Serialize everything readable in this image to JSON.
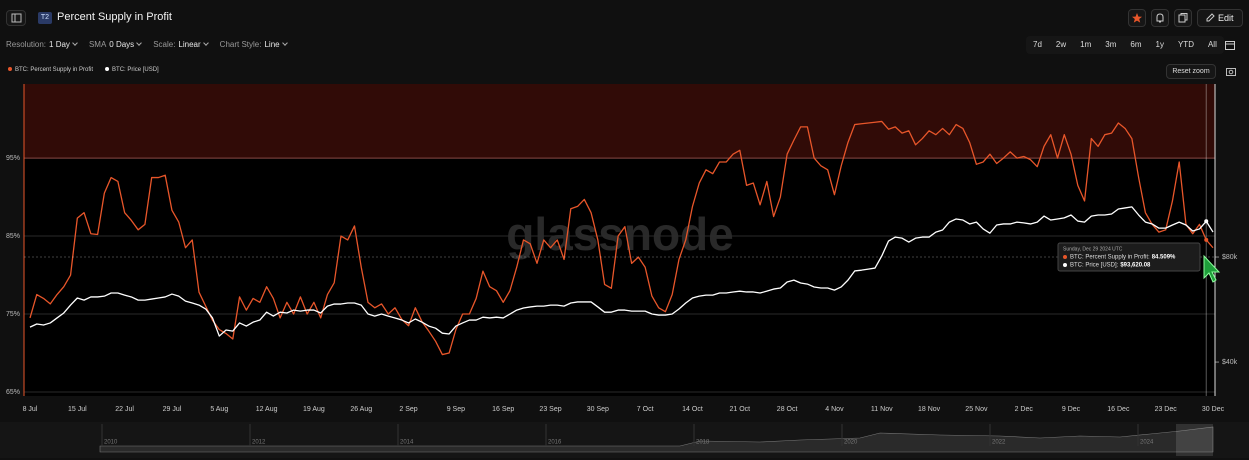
{
  "header": {
    "badge": "T2",
    "title": "Percent Supply in Profit",
    "edit": "Edit"
  },
  "toolbar": {
    "items": [
      {
        "label": "Resolution:",
        "value": "1 Day"
      },
      {
        "label": "SMA",
        "value": "0 Days"
      },
      {
        "label": "Scale:",
        "value": "Linear"
      },
      {
        "label": "Chart Style:",
        "value": "Line"
      }
    ],
    "ranges": [
      "7d",
      "2w",
      "1m",
      "3m",
      "6m",
      "1y",
      "YTD",
      "All"
    ],
    "reset": "Reset zoom"
  },
  "watermark": "glassnode",
  "tooltip": {
    "date": "Sunday, Dec 29 2024 UTC",
    "rows": [
      {
        "label": "BTC: Percent Supply in Profit:",
        "value": "84.509%"
      },
      {
        "label": "BTC: Price [USD]:",
        "value": "$93,620.08"
      }
    ]
  },
  "navigator": {
    "years": [
      "2010",
      "2012",
      "2014",
      "2016",
      "2018",
      "2020",
      "2022",
      "2024"
    ]
  },
  "chart_data": {
    "type": "line",
    "categories": [
      "8 Jul",
      null,
      null,
      null,
      null,
      null,
      null,
      "15 Jul",
      null,
      null,
      null,
      null,
      null,
      null,
      "22 Jul",
      null,
      null,
      null,
      null,
      null,
      null,
      "29 Jul",
      null,
      null,
      null,
      null,
      null,
      null,
      "5 Aug",
      null,
      null,
      null,
      null,
      null,
      null,
      "12 Aug",
      null,
      null,
      null,
      null,
      null,
      null,
      "19 Aug",
      null,
      null,
      null,
      null,
      null,
      null,
      "26 Aug",
      null,
      null,
      null,
      null,
      null,
      null,
      "2 Sep",
      null,
      null,
      null,
      null,
      null,
      null,
      "9 Sep",
      null,
      null,
      null,
      null,
      null,
      null,
      "16 Sep",
      null,
      null,
      null,
      null,
      null,
      null,
      "23 Sep",
      null,
      null,
      null,
      null,
      null,
      null,
      "30 Sep",
      null,
      null,
      null,
      null,
      null,
      null,
      "7 Oct",
      null,
      null,
      null,
      null,
      null,
      null,
      "14 Oct",
      null,
      null,
      null,
      null,
      null,
      null,
      "21 Oct",
      null,
      null,
      null,
      null,
      null,
      null,
      "28 Oct",
      null,
      null,
      null,
      null,
      null,
      null,
      "4 Nov",
      null,
      null,
      null,
      null,
      null,
      null,
      "11 Nov",
      null,
      null,
      null,
      null,
      null,
      null,
      "18 Nov",
      null,
      null,
      null,
      null,
      null,
      null,
      "25 Nov",
      null,
      null,
      null,
      null,
      null,
      null,
      "2 Dec",
      null,
      null,
      null,
      null,
      null,
      null,
      "9 Dec",
      null,
      null,
      null,
      null,
      null,
      null,
      "16 Dec",
      null,
      null,
      null,
      null,
      null,
      null,
      "23 Dec",
      null,
      null,
      null,
      null,
      null,
      null,
      "30 Dec"
    ],
    "series": [
      {
        "name": "BTC: Percent Supply in Profit",
        "color": "#e8562a",
        "values": [
          74.5,
          77.5,
          77,
          76.3,
          77.5,
          78.5,
          80,
          87.3,
          88,
          85.3,
          85.2,
          90.5,
          92.5,
          92,
          88,
          87,
          85.8,
          86.5,
          92.5,
          92.5,
          92.8,
          88.3,
          86.8,
          83.5,
          84.5,
          77.8,
          76,
          74.2,
          73,
          72.5,
          71.8,
          77.2,
          75.5,
          77,
          76.5,
          78.5,
          77,
          74.5,
          76.5,
          75,
          77.2,
          75,
          76.5,
          74.5,
          77.5,
          79,
          85,
          84.5,
          86.3,
          81,
          76.5,
          75.8,
          76.3,
          75,
          75.8,
          74.3,
          73.5,
          75.8,
          74,
          72.8,
          71.5,
          69.8,
          70,
          73,
          75,
          75,
          77,
          80.5,
          78.5,
          78,
          76.5,
          78,
          81,
          84.5,
          84,
          81.5,
          84.5,
          83.5,
          84.5,
          82,
          88.5,
          88.8,
          89.7,
          88,
          84.5,
          78.8,
          78.3,
          85,
          86.2,
          81.5,
          82.3,
          81,
          77.3,
          75.8,
          75.3,
          77.5,
          82,
          84.5,
          88.8,
          91.8,
          93.5,
          93,
          94.5,
          94.5,
          95.5,
          96,
          91.5,
          91.8,
          89,
          92,
          87.5,
          90,
          95.5,
          97.3,
          99,
          99,
          95,
          94,
          93.5,
          90.3,
          94,
          97,
          99.3,
          99.4,
          99.5,
          99.6,
          99.7,
          98.7,
          99,
          98.2,
          98.5,
          96.7,
          97.5,
          98.5,
          98,
          98.8,
          98,
          99.3,
          98.8,
          97,
          94.2,
          94.5,
          95.5,
          94.3,
          95,
          95.8,
          95,
          95.2,
          94.8,
          93.9,
          96.5,
          98,
          95,
          98,
          95.5,
          91.5,
          89.5,
          97.5,
          96.5,
          98,
          98.2,
          99.5,
          98.8,
          97.5,
          92.5,
          88,
          86.5,
          85.5,
          85.8,
          89.5,
          94.5,
          86.5,
          85.3,
          86.5,
          84.509,
          83.5
        ]
      },
      {
        "name": "BTC: Price [USD]",
        "color": "#ffffff",
        "axis": "y2",
        "values": [
          53300,
          54500,
          54100,
          54900,
          56800,
          58700,
          61700,
          64400,
          63600,
          64800,
          64800,
          65100,
          66300,
          66300,
          65500,
          64800,
          63600,
          63600,
          64000,
          64400,
          64800,
          65900,
          65100,
          63200,
          62500,
          61700,
          60200,
          56800,
          49900,
          52200,
          51800,
          54900,
          53700,
          55200,
          56000,
          59000,
          57500,
          59000,
          58700,
          59800,
          59400,
          59800,
          59800,
          58700,
          61300,
          62100,
          62100,
          62500,
          62500,
          61700,
          58300,
          57500,
          58300,
          57500,
          56800,
          56000,
          54900,
          56400,
          55200,
          53700,
          52900,
          51000,
          50700,
          53700,
          54900,
          56000,
          56000,
          57100,
          56800,
          57100,
          56800,
          58300,
          59800,
          60600,
          61000,
          61300,
          61300,
          61700,
          61700,
          61300,
          62500,
          62900,
          62900,
          62900,
          61000,
          59000,
          59000,
          59800,
          59800,
          59400,
          59400,
          59400,
          58300,
          57900,
          57900,
          58300,
          60200,
          62500,
          64400,
          65100,
          65500,
          65500,
          66300,
          66300,
          66700,
          67000,
          66700,
          66700,
          66300,
          67000,
          67800,
          68200,
          70500,
          71200,
          70100,
          69700,
          68600,
          68200,
          68200,
          67400,
          68600,
          71200,
          74700,
          75000,
          75400,
          75800,
          80400,
          86100,
          87600,
          87200,
          85700,
          87200,
          87600,
          87600,
          89500,
          90300,
          93300,
          94500,
          94100,
          92600,
          93300,
          90700,
          89100,
          92200,
          92600,
          92600,
          93300,
          93000,
          92600,
          93300,
          95600,
          94100,
          94500,
          94900,
          96000,
          93700,
          93300,
          95600,
          96000,
          96000,
          96400,
          98300,
          98700,
          99100,
          96000,
          93300,
          92600,
          91000,
          91000,
          92200,
          93300,
          92200,
          89900,
          90700,
          93620.08,
          89500
        ]
      }
    ],
    "ylim": [
      65,
      104.5
    ],
    "yticks": [
      {
        "value": 65,
        "label": "65%"
      },
      {
        "value": 75,
        "label": "75%"
      },
      {
        "value": 85,
        "label": "85%"
      },
      {
        "value": 95,
        "label": "95%"
      }
    ],
    "y2lim": [
      28600,
      145900
    ],
    "y2ticks": [
      {
        "value": 40000,
        "label": "$40k"
      },
      {
        "value": 80000,
        "label": "$80k"
      }
    ],
    "shade_above": 95,
    "grid": true
  }
}
